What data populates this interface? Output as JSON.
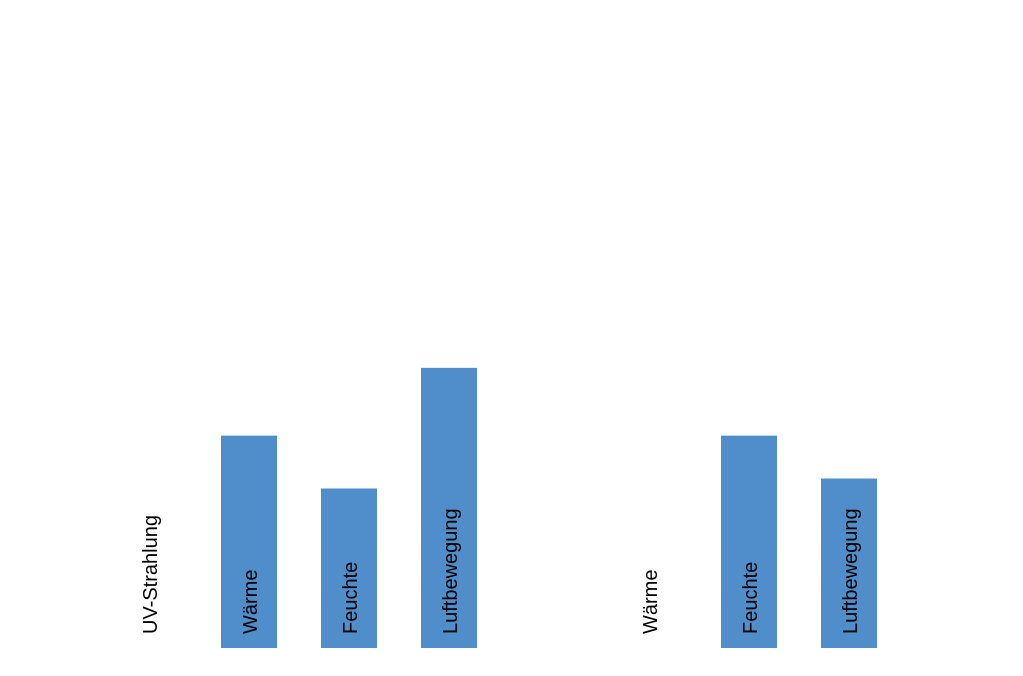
{
  "chart_data": {
    "type": "bar",
    "categories": [
      "UV-Strahlung",
      "Wärme",
      "Feuchte",
      "Luftbewegung",
      "",
      "UV-Strahlung",
      "Wärme",
      "Feuchte",
      "Luftbewegung"
    ],
    "category_labels": [
      "UV-Strahlung",
      "Wärme",
      "Feuchte",
      "Luftbewegung",
      "Wärme",
      "Feuchte",
      "Luftbewegung"
    ],
    "values": [
      0,
      213,
      160,
      281,
      0,
      0,
      213,
      170,
      0
    ],
    "ylim": [
      0,
      650
    ],
    "grid": false,
    "title": "",
    "xlabel": "",
    "ylabel": "",
    "label_placement": "inside-bar-bottom-rotated",
    "colors": {
      "bar": "#4f8dcb",
      "text": "#000000",
      "background": "#ffffff"
    }
  }
}
